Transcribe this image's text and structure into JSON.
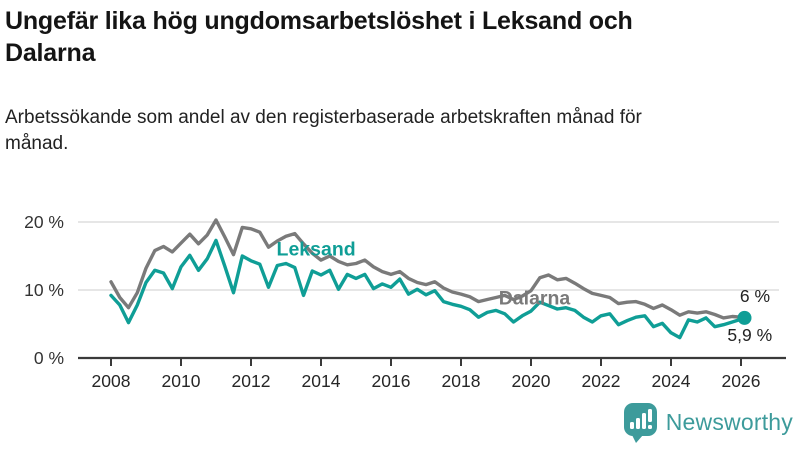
{
  "header": {
    "title": "Ungefär lika hög ungdomsarbetslöshet i Leksand och Dalarna",
    "subtitle": "Arbetssökande som andel av den registerbaserade arbetskraften månad för månad."
  },
  "footer": {
    "brand": "Newsworthy"
  },
  "colors": {
    "leksand": "#0f9e96",
    "dalarna": "#7a7a7a",
    "grid": "#dedede",
    "axis": "#3a3a3a",
    "tick_label": "#333333",
    "value_label": "#222222",
    "brand": "#3d9b9b"
  },
  "chart_data": {
    "type": "line",
    "title": "Ungefär lika hög ungdomsarbetslöshet i Leksand och Dalarna",
    "subtitle": "Arbetssökande som andel av den registerbaserade arbetskraften månad för månad.",
    "xlabel": "",
    "ylabel": "",
    "grid": true,
    "legend": "inline-labels",
    "xlim": [
      2007.8,
      2026.9
    ],
    "ylim": [
      0,
      21.5
    ],
    "y_ticks": [
      {
        "v": 0,
        "label": "0 %"
      },
      {
        "v": 10,
        "label": "10 %"
      },
      {
        "v": 20,
        "label": "20 %"
      }
    ],
    "x_ticks": [
      {
        "v": 2008,
        "label": "2008"
      },
      {
        "v": 2010,
        "label": "2010"
      },
      {
        "v": 2012,
        "label": "2012"
      },
      {
        "v": 2014,
        "label": "2014"
      },
      {
        "v": 2016,
        "label": "2016"
      },
      {
        "v": 2018,
        "label": "2018"
      },
      {
        "v": 2020,
        "label": "2020"
      },
      {
        "v": 2022,
        "label": "2022"
      },
      {
        "v": 2024,
        "label": "2024"
      },
      {
        "v": 2026,
        "label": "2026"
      }
    ],
    "x": [
      2008.0,
      2008.25,
      2008.5,
      2008.75,
      2009.0,
      2009.25,
      2009.5,
      2009.75,
      2010.0,
      2010.25,
      2010.5,
      2010.75,
      2011.0,
      2011.25,
      2011.5,
      2011.75,
      2012.0,
      2012.25,
      2012.5,
      2012.75,
      2013.0,
      2013.25,
      2013.5,
      2013.75,
      2014.0,
      2014.25,
      2014.5,
      2014.75,
      2015.0,
      2015.25,
      2015.5,
      2015.75,
      2016.0,
      2016.25,
      2016.5,
      2016.75,
      2017.0,
      2017.25,
      2017.5,
      2017.75,
      2018.0,
      2018.25,
      2018.5,
      2018.75,
      2019.0,
      2019.25,
      2019.5,
      2019.75,
      2020.0,
      2020.25,
      2020.5,
      2020.75,
      2021.0,
      2021.25,
      2021.5,
      2021.75,
      2022.0,
      2022.25,
      2022.5,
      2022.75,
      2023.0,
      2023.25,
      2023.5,
      2023.75,
      2024.0,
      2024.25,
      2024.5,
      2024.75,
      2025.0,
      2025.25,
      2025.5,
      2025.75,
      2026.0,
      2026.1
    ],
    "series": [
      {
        "name": "Dalarna",
        "color_key": "dalarna",
        "end_label": "6 %",
        "end_dot": false,
        "values": [
          11.2,
          8.9,
          7.4,
          9.6,
          13.2,
          15.8,
          16.4,
          15.6,
          16.9,
          18.2,
          16.8,
          18.1,
          20.3,
          17.8,
          15.2,
          19.2,
          19.0,
          18.5,
          16.3,
          17.2,
          17.9,
          18.3,
          16.8,
          15.4,
          14.4,
          15.0,
          14.2,
          13.7,
          13.9,
          14.4,
          13.4,
          12.7,
          12.3,
          12.7,
          11.7,
          11.1,
          10.8,
          11.2,
          10.3,
          9.7,
          9.4,
          9.0,
          8.3,
          8.6,
          8.9,
          9.2,
          8.6,
          9.1,
          9.9,
          11.8,
          12.2,
          11.5,
          11.7,
          11.0,
          10.2,
          9.5,
          9.2,
          8.9,
          8.0,
          8.2,
          8.3,
          7.9,
          7.3,
          7.8,
          7.1,
          6.3,
          6.8,
          6.6,
          6.8,
          6.4,
          5.9,
          6.1,
          6.0,
          6.0
        ]
      },
      {
        "name": "Leksand",
        "color_key": "leksand",
        "end_label": "5,9 %",
        "end_dot": true,
        "values": [
          9.2,
          7.8,
          5.2,
          7.8,
          11.1,
          12.9,
          12.5,
          10.2,
          13.4,
          15.1,
          12.9,
          14.6,
          17.3,
          13.5,
          9.6,
          15.0,
          14.3,
          13.8,
          10.4,
          13.6,
          13.9,
          13.3,
          9.2,
          12.8,
          12.2,
          12.9,
          10.1,
          12.3,
          11.7,
          12.3,
          10.2,
          10.9,
          10.4,
          11.6,
          9.4,
          10.1,
          9.3,
          9.9,
          8.3,
          7.9,
          7.6,
          7.1,
          6.0,
          6.7,
          7.0,
          6.5,
          5.3,
          6.2,
          6.9,
          8.2,
          7.7,
          7.2,
          7.4,
          7.0,
          6.0,
          5.3,
          6.2,
          6.5,
          4.9,
          5.5,
          6.0,
          6.2,
          4.6,
          5.1,
          3.7,
          3.0,
          5.6,
          5.3,
          5.9,
          4.6,
          4.9,
          5.3,
          5.7,
          5.9
        ]
      }
    ],
    "series_labels": [
      {
        "text": "Leksand",
        "x": 2013.86,
        "y": 15.1,
        "color_key": "leksand",
        "anchor": "middle"
      },
      {
        "text": "Dalarna",
        "x": 2020.1,
        "y": 7.9,
        "color_key": "dalarna",
        "anchor": "middle"
      }
    ],
    "end_labels": [
      {
        "text": "6 %",
        "x": 2026.83,
        "y": 8.2,
        "anchor": "end"
      },
      {
        "text": "5,9 %",
        "x": 2026.89,
        "y": 2.5,
        "anchor": "end"
      }
    ]
  }
}
